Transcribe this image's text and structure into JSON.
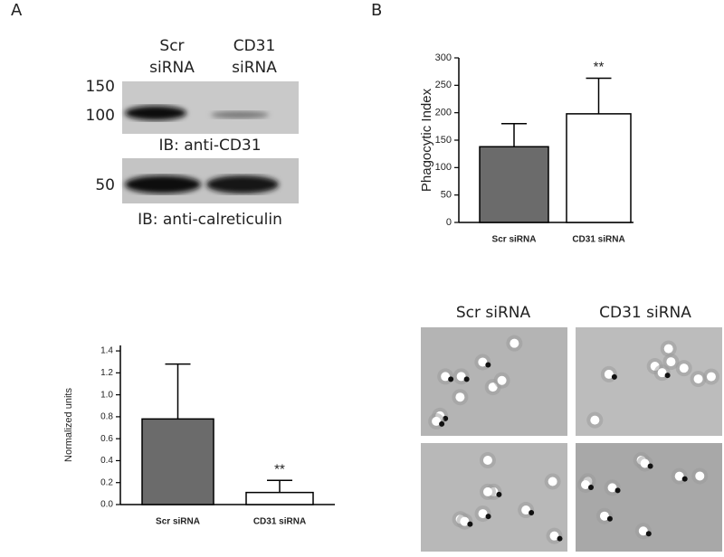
{
  "panels": {
    "a_label": "A",
    "b_label": "B",
    "lanes": [
      [
        "Scr",
        "siRNA"
      ],
      [
        "CD31",
        "siRNA"
      ]
    ],
    "markers": [
      "150",
      "100",
      "50"
    ],
    "blot_labels": [
      "IB: anti-CD31",
      "IB: anti-calreticulin"
    ],
    "micrograph_labels": [
      "Scr siRNA",
      "CD31 siRNA"
    ]
  },
  "chart_data": [
    {
      "type": "bar",
      "ylabel": "Phagocytic Index",
      "categories": [
        "Scr siRNA",
        "CD31 siRNA"
      ],
      "values": [
        138,
        198
      ],
      "errors": [
        42,
        65
      ],
      "colors": [
        "#6b6b6b",
        "#ffffff"
      ],
      "annotations": [
        null,
        "**"
      ],
      "ylim": [
        0,
        300
      ],
      "yticks": [
        0,
        50,
        100,
        150,
        200,
        250,
        300
      ]
    },
    {
      "type": "bar",
      "ylabel": "Normalized units",
      "categories": [
        "Scr siRNA",
        "CD31 siRNA"
      ],
      "values": [
        0.78,
        0.11
      ],
      "errors": [
        0.5,
        0.11
      ],
      "colors": [
        "#6b6b6b",
        "#ffffff"
      ],
      "annotations": [
        null,
        "**"
      ],
      "ylim": [
        0,
        1.45
      ],
      "yticks": [
        {
          "value": 0,
          "label": "0.0"
        },
        0.2,
        0.4,
        0.6,
        0.8,
        {
          "value": 1,
          "label": "1.0"
        },
        1.2,
        1.4
      ]
    }
  ]
}
